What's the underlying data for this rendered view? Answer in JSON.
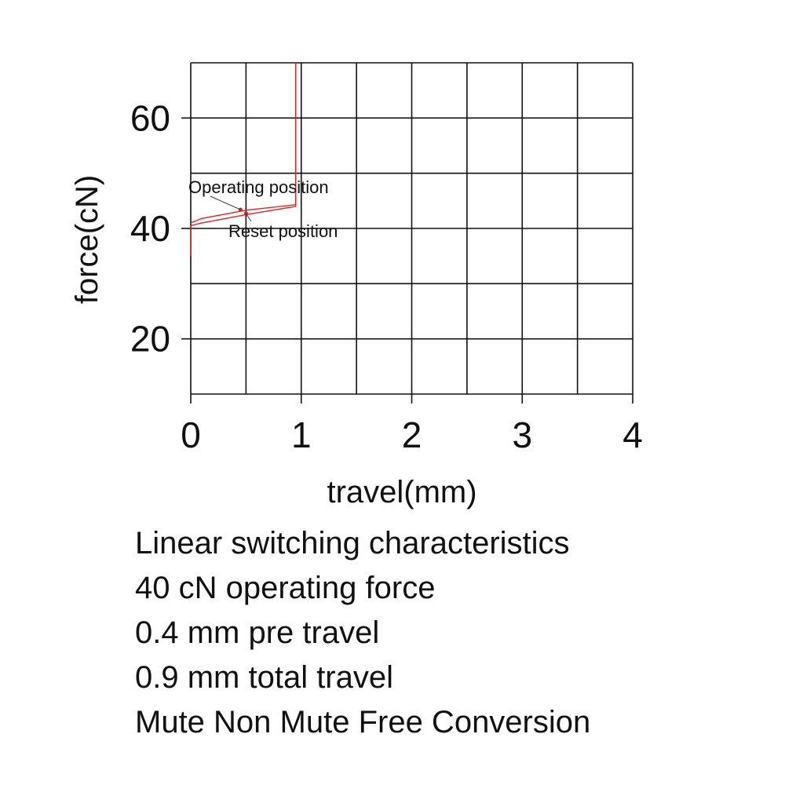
{
  "chart_data": {
    "type": "line",
    "xlabel": "travel(mm)",
    "ylabel": "force(cN)",
    "xlim": [
      0,
      4
    ],
    "ylim": [
      10,
      70
    ],
    "x_ticks": [
      "0",
      "1",
      "2",
      "3",
      "4"
    ],
    "y_ticks": [
      "20",
      "40",
      "60"
    ],
    "grid": true,
    "series": [
      {
        "color": "#e02020",
        "points": [
          [
            0,
            35
          ],
          [
            0,
            40.5
          ],
          [
            0.1,
            41
          ],
          [
            0.5,
            42.5
          ],
          [
            0.95,
            44
          ],
          [
            0.95,
            70
          ]
        ]
      },
      {
        "color": "#e02020",
        "points": [
          [
            0,
            41
          ],
          [
            0.1,
            41.8
          ],
          [
            0.5,
            43.3
          ],
          [
            0.95,
            44.3
          ],
          [
            0.95,
            70
          ]
        ]
      }
    ],
    "annotations": [
      {
        "text": "Operating position",
        "x": 0.45,
        "y": 43.4
      },
      {
        "text": "Reset position",
        "x": 0.5,
        "y": 42.7
      }
    ]
  },
  "specs": [
    "Linear switching characteristics",
    "40 cN operating force",
    "0.4 mm pre travel",
    "0.9 mm total travel",
    "Mute Non Mute Free Conversion"
  ]
}
